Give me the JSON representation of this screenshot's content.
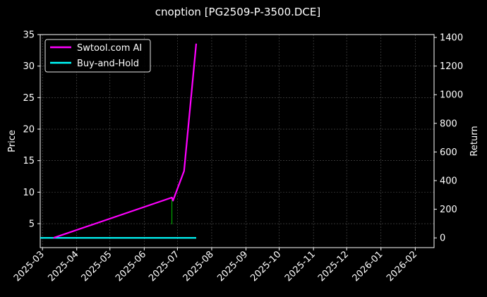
{
  "chart_data": {
    "type": "line",
    "title": "cnoption [PG2509-P-3500.DCE]",
    "ylabel_left": "Price",
    "ylabel_right": "Return",
    "xlim": [
      "2025-02-27",
      "2026-02-18"
    ],
    "ylim_left": [
      1.2,
      35
    ],
    "ylim_right": [
      -68,
      1420
    ],
    "x_ticks": [
      "2025-03",
      "2025-04",
      "2025-05",
      "2025-06",
      "2025-07",
      "2025-08",
      "2025-09",
      "2025-10",
      "2025-11",
      "2025-12",
      "2026-01",
      "2026-02"
    ],
    "y_ticks_left": [
      5,
      10,
      15,
      20,
      25,
      30,
      35
    ],
    "y_ticks_right": [
      0,
      200,
      400,
      600,
      800,
      1000,
      1200,
      1400
    ],
    "grid": true,
    "legend_position": "top-left",
    "background": "#000000",
    "series": [
      {
        "name": "Swtool.com AI",
        "axis": "right",
        "color": "#ff00ff",
        "x": [
          "2025-03-11",
          "2025-06-26",
          "2025-06-27",
          "2025-07-07",
          "2025-07-18"
        ],
        "values": [
          0,
          282,
          260,
          467,
          1357
        ]
      },
      {
        "name": "Buy-and-Hold",
        "axis": "right",
        "color": "#00ffff",
        "x": [
          "2025-02-27",
          "2025-07-18"
        ],
        "values": [
          0,
          0
        ]
      }
    ],
    "volume_bars": {
      "color": "#00aa00",
      "x": [
        "2025-06-26"
      ],
      "price_low": [
        4.9
      ],
      "price_high": [
        8.8
      ]
    }
  }
}
